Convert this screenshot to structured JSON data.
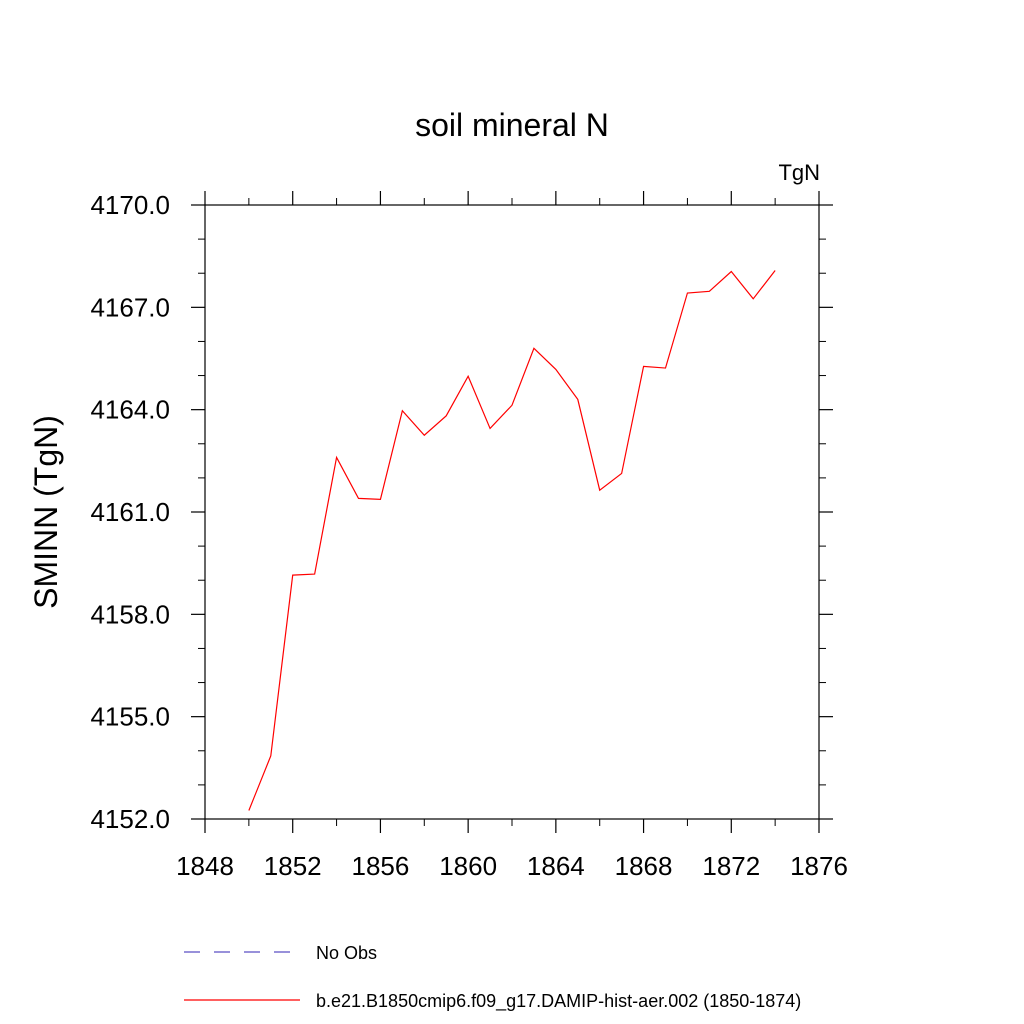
{
  "chart_data": {
    "type": "line",
    "title": "soil mineral N",
    "units_label": "TgN",
    "ylabel": "SMINN  (TgN)",
    "xlabel": "",
    "xlim": [
      1848,
      1876
    ],
    "ylim": [
      4152.0,
      4170.0
    ],
    "x_ticks": [
      1848,
      1852,
      1856,
      1860,
      1864,
      1868,
      1872,
      1876
    ],
    "x_tick_labels": [
      "1848",
      "1852",
      "1856",
      "1860",
      "1864",
      "1868",
      "1872",
      "1876"
    ],
    "y_ticks": [
      4152.0,
      4155.0,
      4158.0,
      4161.0,
      4164.0,
      4167.0,
      4170.0
    ],
    "y_tick_labels": [
      "4152.0",
      "4155.0",
      "4158.0",
      "4161.0",
      "4164.0",
      "4167.0",
      "4170.0"
    ],
    "grid": false,
    "legend_placement": "bottom",
    "series": [
      {
        "name": "b.e21.B1850cmip6.f09_g17.DAMIP-hist-aer.002 (1850-1874)",
        "color": "#ff0000",
        "style": "solid",
        "x": [
          1850,
          1851,
          1852,
          1853,
          1854,
          1855,
          1856,
          1857,
          1858,
          1859,
          1860,
          1861,
          1862,
          1863,
          1864,
          1865,
          1866,
          1867,
          1868,
          1869,
          1870,
          1871,
          1872,
          1873,
          1874
        ],
        "values": [
          4152.25,
          4153.85,
          4159.15,
          4159.18,
          4162.6,
          4161.4,
          4161.37,
          4163.97,
          4163.25,
          4163.82,
          4164.98,
          4163.45,
          4164.13,
          4165.8,
          4165.18,
          4164.3,
          4161.64,
          4162.13,
          4165.27,
          4165.22,
          4167.42,
          4167.47,
          4168.05,
          4167.25,
          4168.08
        ]
      }
    ],
    "legend": [
      {
        "label": "No Obs",
        "color": "#5a4fc4",
        "style": "dashed"
      },
      {
        "label": "b.e21.B1850cmip6.f09_g17.DAMIP-hist-aer.002 (1850-1874)",
        "color": "#ff0000",
        "style": "solid"
      }
    ]
  }
}
